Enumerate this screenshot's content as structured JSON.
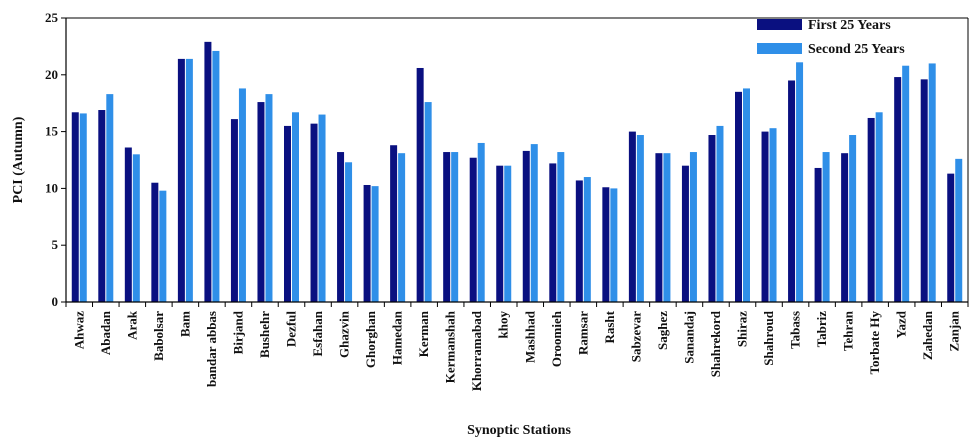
{
  "chart_data": {
    "type": "bar",
    "xlabel": "Synoptic Stations",
    "ylabel": "PCI (Autumn)",
    "ylim": [
      0,
      25
    ],
    "yticks": [
      0,
      5,
      10,
      15,
      20,
      25
    ],
    "grid": false,
    "legend_position": "top-right",
    "categories": [
      "Ahwaz",
      "Abadan",
      "Arak",
      "Babolsar",
      "Bam",
      "bandar abbas",
      "Birjand",
      "Bushehr",
      "Dezful",
      "Esfahan",
      "Ghazvin",
      "Ghorghan",
      "Hamedan",
      "Kerman",
      "Kermanshah",
      "Khorramabad",
      "khoy",
      "Mashhad",
      "Oroomieh",
      "Ramsar",
      "Rasht",
      "Sabzevar",
      "Saghez",
      "Sanandaj",
      "Shahrekord",
      "Shiraz",
      "Shahroud",
      "Tabass",
      "Tabriz",
      "Tehran",
      "Torbate Hy",
      "Yazd",
      "Zahedan",
      "Zanjan"
    ],
    "series": [
      {
        "name": "First 25 Years",
        "color": "#0a1080",
        "values": [
          16.7,
          16.9,
          13.6,
          10.5,
          21.4,
          22.9,
          16.1,
          17.6,
          15.5,
          15.7,
          13.2,
          10.3,
          13.8,
          20.6,
          13.2,
          12.7,
          12.0,
          13.3,
          12.2,
          10.7,
          10.1,
          15.0,
          13.1,
          12.0,
          14.7,
          18.5,
          15.0,
          19.5,
          11.8,
          13.1,
          16.2,
          19.8,
          19.6,
          11.3
        ]
      },
      {
        "name": "Second 25 Years",
        "color": "#2f8fe8",
        "values": [
          16.6,
          18.3,
          13.0,
          9.8,
          21.4,
          22.1,
          18.8,
          18.3,
          16.7,
          16.5,
          12.3,
          10.2,
          13.1,
          17.6,
          13.2,
          14.0,
          12.0,
          13.9,
          13.2,
          11.0,
          10.0,
          14.7,
          13.1,
          13.2,
          15.5,
          18.8,
          15.3,
          21.1,
          13.2,
          14.7,
          16.7,
          20.8,
          21.0,
          12.6
        ]
      }
    ]
  }
}
